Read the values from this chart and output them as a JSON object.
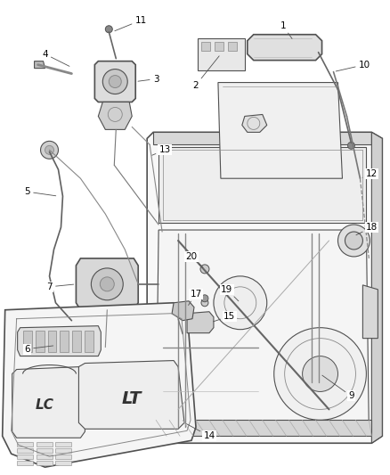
{
  "fig_width": 4.38,
  "fig_height": 5.33,
  "dpi": 100,
  "bg_color": [
    255,
    255,
    255
  ],
  "line_color": [
    80,
    80,
    80
  ],
  "light_gray": [
    200,
    200,
    200
  ],
  "mid_gray": [
    150,
    150,
    150
  ],
  "dark_gray": [
    60,
    60,
    60
  ]
}
